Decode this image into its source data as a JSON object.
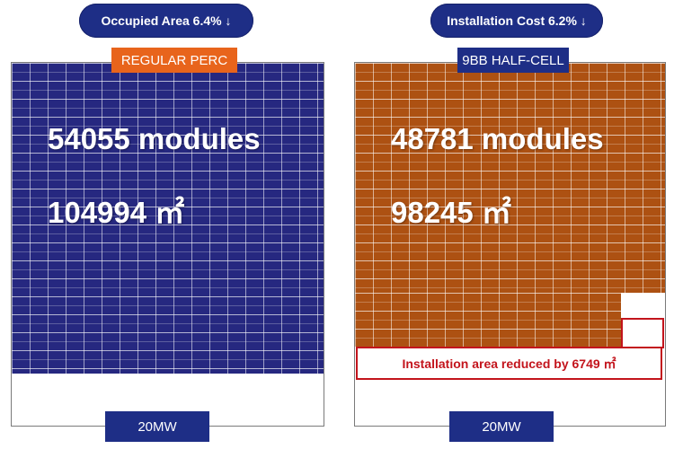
{
  "left": {
    "pill": "Occupied Area 6.4% ↓",
    "tag": "REGULAR PERC",
    "modules": "54055 modules",
    "area": "104994 ㎡",
    "capacity": "20MW",
    "color": "#262880"
  },
  "right": {
    "pill": "Installation Cost 6.2% ↓",
    "tag": "9BB HALF-CELL",
    "modules": "48781 modules",
    "area": "98245 ㎡",
    "capacity": "20MW",
    "reduced_note": "Installation area reduced by 6749 ㎡",
    "color": "#ad5112"
  },
  "colors": {
    "pill": "#1e2e86",
    "tag_left": "#e8641c",
    "tag_right": "#1e2e86",
    "highlight": "#c3141c"
  }
}
